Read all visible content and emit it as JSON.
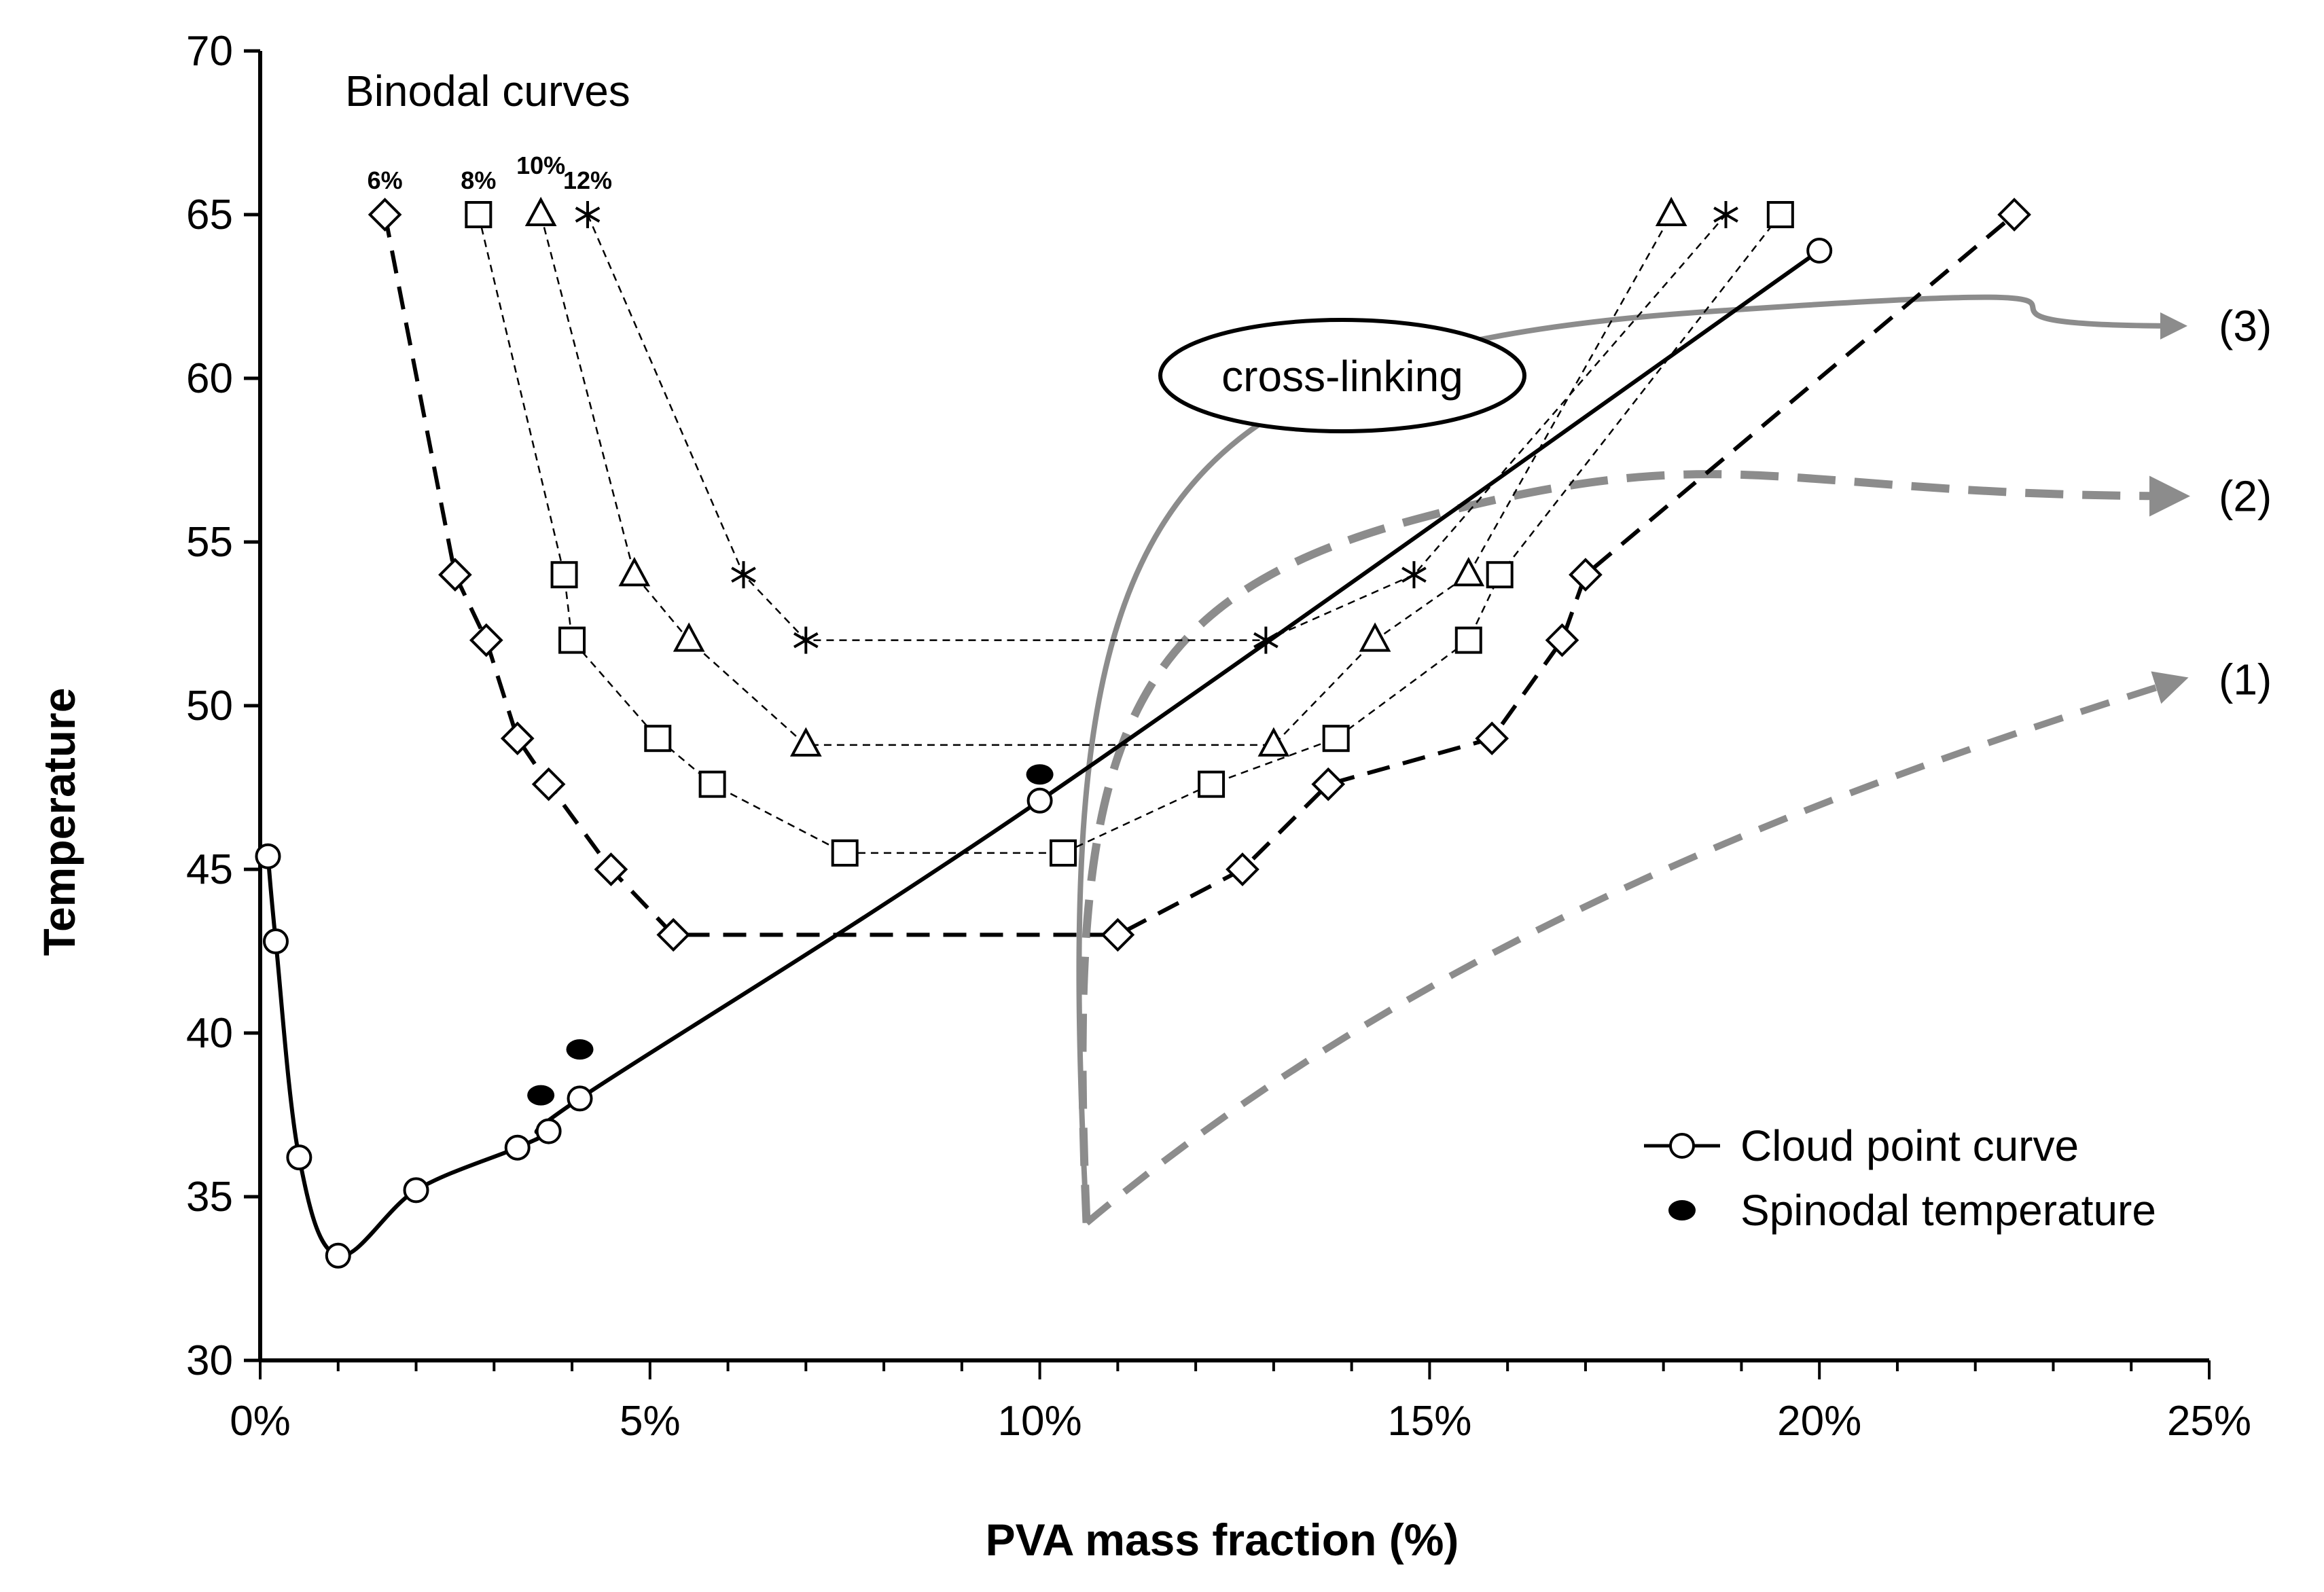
{
  "chart_data": {
    "type": "scatter",
    "title": "",
    "xlabel": "PVA mass fraction (%)",
    "ylabel": "Temperature",
    "xlim": [
      0,
      25
    ],
    "ylim": [
      30,
      70
    ],
    "x_ticks": [
      0,
      5,
      10,
      15,
      20,
      25
    ],
    "x_tick_labels": [
      "0%",
      "5%",
      "10%",
      "15%",
      "20%",
      "25%"
    ],
    "y_ticks": [
      30,
      35,
      40,
      45,
      50,
      55,
      60,
      65,
      70
    ],
    "y_tick_labels": [
      "30",
      "35",
      "40",
      "45",
      "50",
      "55",
      "60",
      "65",
      "70"
    ],
    "binodal_title": "Binodal curves",
    "legend": {
      "position": "bottom-right",
      "entries": [
        {
          "label": "Cloud point curve",
          "marker": "open-circle",
          "line": "solid"
        },
        {
          "label": "Spinodal temperature",
          "marker": "filled-ellipse",
          "line": "none"
        }
      ]
    },
    "cloud_point_curve": {
      "name": "Cloud point curve",
      "x": [
        0.1,
        0.2,
        0.5,
        1.0,
        2.0,
        3.3,
        3.7,
        4.1,
        10.0,
        20.0
      ],
      "y": [
        45.4,
        42.8,
        36.2,
        33.2,
        35.2,
        36.5,
        37.0,
        38.0,
        47.1,
        63.9
      ]
    },
    "spinodal_points": {
      "name": "Spinodal temperature",
      "x": [
        3.6,
        4.1,
        10.0
      ],
      "y": [
        38.1,
        39.5,
        47.9
      ]
    },
    "binodal_series": [
      {
        "name": "6%",
        "label": "6%",
        "marker": "diamond",
        "line": "long-dash",
        "x": [
          1.6,
          2.5,
          2.9,
          3.3,
          3.7,
          4.5,
          5.3,
          11.0,
          12.6,
          13.7,
          15.8,
          16.7,
          17.0,
          22.5
        ],
        "y": [
          65,
          54,
          52,
          49,
          47.6,
          45,
          43,
          43,
          45,
          47.6,
          49,
          52,
          54,
          65
        ]
      },
      {
        "name": "8%",
        "label": "8%",
        "marker": "square",
        "line": "short-dash",
        "x": [
          2.8,
          3.9,
          4.0,
          5.1,
          5.8,
          7.5,
          10.3,
          12.2,
          13.8,
          15.5,
          15.9,
          19.5
        ],
        "y": [
          65,
          54,
          52,
          49,
          47.6,
          45.5,
          45.5,
          47.6,
          49,
          52,
          54,
          65
        ]
      },
      {
        "name": "10%",
        "label": "10%",
        "marker": "triangle",
        "line": "short-dash",
        "x": [
          3.6,
          4.8,
          5.5,
          7.0,
          13.0,
          14.3,
          15.5,
          18.1
        ],
        "y": [
          65,
          54,
          52,
          48.8,
          48.8,
          52,
          54,
          65
        ]
      },
      {
        "name": "12%",
        "label": "12%",
        "marker": "star",
        "line": "short-dash",
        "x": [
          4.2,
          6.2,
          7.0,
          12.9,
          14.8,
          18.8
        ],
        "y": [
          65,
          54,
          52,
          52,
          54,
          65
        ]
      }
    ],
    "annotations": {
      "crosslinking_label": "cross-linking",
      "paths": [
        {
          "label": "(1)",
          "style": "gray-dashed",
          "start": [
            10.6,
            34.2
          ],
          "end": [
            25,
            50.8
          ]
        },
        {
          "label": "(2)",
          "style": "gray-dashed",
          "start": [
            10.6,
            34.2
          ],
          "end": [
            25,
            56.4
          ]
        },
        {
          "label": "(3)",
          "style": "gray-solid",
          "start": [
            10.6,
            34.2
          ],
          "end": [
            25,
            61.6
          ]
        }
      ]
    }
  }
}
